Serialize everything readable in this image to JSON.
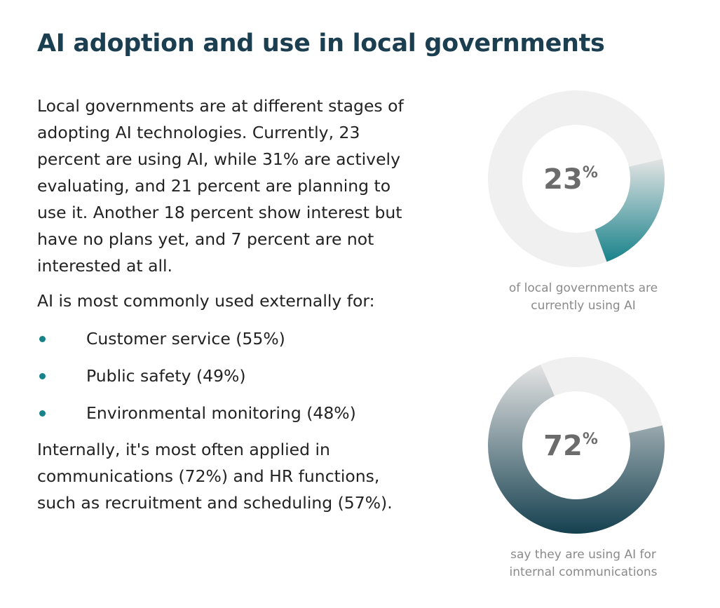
{
  "title": "AI adoption and use in local governments",
  "paragraphs": [
    "Local governments are at different stages of adopting AI technologies. Currently, 23 percent are using AI, while 31% are actively evaluating, and 21 percent are planning to use it. Another 18 percent show interest but have no plans yet, and 7 percent are not interested at all.",
    "AI is most commonly used externally for:"
  ],
  "bullets": [
    "Customer service (55%)",
    "Public safety (49%)",
    "Environmental monitoring (48%)"
  ],
  "closing": "Internally, it's most often applied in communications (72%) and HR functions, such as recruitment and scheduling (57%).",
  "chart_data": [
    {
      "type": "donut",
      "values": [
        23
      ],
      "unit": "%",
      "color": "#17828a",
      "caption": "of local governments are currently using AI"
    },
    {
      "type": "donut",
      "values": [
        72
      ],
      "unit": "%",
      "color": "#15404f",
      "caption": "say they are using AI for internal communications"
    }
  ]
}
